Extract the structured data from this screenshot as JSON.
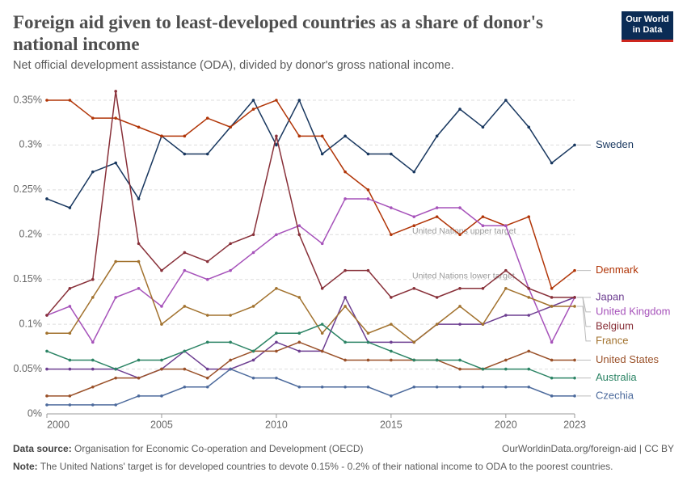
{
  "chart_data": {
    "type": "line",
    "title": "Foreign aid given to least-developed countries as a share of donor's national income",
    "subtitle": "Net official development assistance (ODA), divided by donor's gross national income.",
    "logo": [
      "Our World",
      "in Data"
    ],
    "source_label": "Data source:",
    "source": "Organisation for Economic Co-operation and Development (OECD)",
    "url": "OurWorldinData.org/foreign-aid | CC BY",
    "note_label": "Note:",
    "note": "The United Nations' target is for developed countries to devote 0.15% - 0.2% of their national income to ODA to the poorest countries.",
    "annotations": [
      {
        "text": "United Nations upper target",
        "value": 0.2
      },
      {
        "text": "United Nations lower target",
        "value": 0.15
      }
    ],
    "x": [
      2000,
      2001,
      2002,
      2003,
      2004,
      2005,
      2006,
      2007,
      2008,
      2009,
      2010,
      2011,
      2012,
      2013,
      2014,
      2015,
      2016,
      2017,
      2018,
      2019,
      2020,
      2021,
      2022,
      2023
    ],
    "xlim": [
      2000,
      2023
    ],
    "xticks": [
      2000,
      2005,
      2010,
      2015,
      2020,
      2023
    ],
    "ylim": [
      0,
      0.35
    ],
    "yticks": [
      {
        "value": 0,
        "label": "0%"
      },
      {
        "value": 0.05,
        "label": "0.05%"
      },
      {
        "value": 0.1,
        "label": "0.1%"
      },
      {
        "value": 0.15,
        "label": "0.15%"
      },
      {
        "value": 0.2,
        "label": "0.2%"
      },
      {
        "value": 0.25,
        "label": "0.25%"
      },
      {
        "value": 0.3,
        "label": "0.3%"
      },
      {
        "value": 0.35,
        "label": "0.35%"
      }
    ],
    "grid": true,
    "series": [
      {
        "name": "Sweden",
        "color": "#18375f",
        "values": [
          0.24,
          0.23,
          0.27,
          0.28,
          0.24,
          0.31,
          0.29,
          0.29,
          0.32,
          0.35,
          0.3,
          0.35,
          0.29,
          0.31,
          0.29,
          0.29,
          0.27,
          0.31,
          0.34,
          0.32,
          0.35,
          0.32,
          0.28,
          0.3
        ]
      },
      {
        "name": "Denmark",
        "color": "#b13507",
        "values": [
          0.35,
          0.35,
          0.33,
          0.33,
          0.32,
          0.31,
          0.31,
          0.33,
          0.32,
          0.34,
          0.35,
          0.31,
          0.31,
          0.27,
          0.25,
          0.2,
          0.21,
          0.22,
          0.2,
          0.22,
          0.21,
          0.22,
          0.14,
          0.16
        ]
      },
      {
        "name": "Japan",
        "color": "#6d3e91",
        "values": [
          0.05,
          0.05,
          0.05,
          0.05,
          0.04,
          0.05,
          0.07,
          0.05,
          0.05,
          0.06,
          0.08,
          0.07,
          0.07,
          0.13,
          0.08,
          0.08,
          0.08,
          0.1,
          0.1,
          0.1,
          0.11,
          0.11,
          0.12,
          0.13
        ]
      },
      {
        "name": "United Kingdom",
        "color": "#a652ba",
        "values": [
          0.11,
          0.12,
          0.08,
          0.13,
          0.14,
          0.12,
          0.16,
          0.15,
          0.16,
          0.18,
          0.2,
          0.21,
          0.19,
          0.24,
          0.24,
          0.23,
          0.22,
          0.23,
          0.23,
          0.21,
          0.21,
          0.14,
          0.08,
          0.13
        ]
      },
      {
        "name": "Belgium",
        "color": "#883039",
        "values": [
          0.11,
          0.14,
          0.15,
          0.36,
          0.19,
          0.16,
          0.18,
          0.17,
          0.19,
          0.2,
          0.31,
          0.2,
          0.14,
          0.16,
          0.16,
          0.13,
          0.14,
          0.13,
          0.14,
          0.14,
          0.16,
          0.14,
          0.13,
          0.13
        ]
      },
      {
        "name": "France",
        "color": "#a2722e",
        "values": [
          0.09,
          0.09,
          0.13,
          0.17,
          0.17,
          0.1,
          0.12,
          0.11,
          0.11,
          0.12,
          0.14,
          0.13,
          0.09,
          0.12,
          0.09,
          0.1,
          0.08,
          0.1,
          0.12,
          0.1,
          0.14,
          0.13,
          0.12,
          0.12
        ]
      },
      {
        "name": "United States",
        "color": "#9a5129",
        "values": [
          0.02,
          0.02,
          0.03,
          0.04,
          0.04,
          0.05,
          0.05,
          0.04,
          0.06,
          0.07,
          0.07,
          0.08,
          0.07,
          0.06,
          0.06,
          0.06,
          0.06,
          0.06,
          0.05,
          0.05,
          0.06,
          0.07,
          0.06,
          0.06
        ]
      },
      {
        "name": "Australia",
        "color": "#2c8465",
        "values": [
          0.07,
          0.06,
          0.06,
          0.05,
          0.06,
          0.06,
          0.07,
          0.08,
          0.08,
          0.07,
          0.09,
          0.09,
          0.1,
          0.08,
          0.08,
          0.07,
          0.06,
          0.06,
          0.06,
          0.05,
          0.05,
          0.05,
          0.04,
          0.04
        ]
      },
      {
        "name": "Czechia",
        "color": "#4c6a9c",
        "values": [
          0.01,
          0.01,
          0.01,
          0.01,
          0.02,
          0.02,
          0.03,
          0.03,
          0.05,
          0.04,
          0.04,
          0.03,
          0.03,
          0.03,
          0.03,
          0.02,
          0.03,
          0.03,
          0.03,
          0.03,
          0.03,
          0.03,
          0.02,
          0.02
        ]
      }
    ]
  }
}
